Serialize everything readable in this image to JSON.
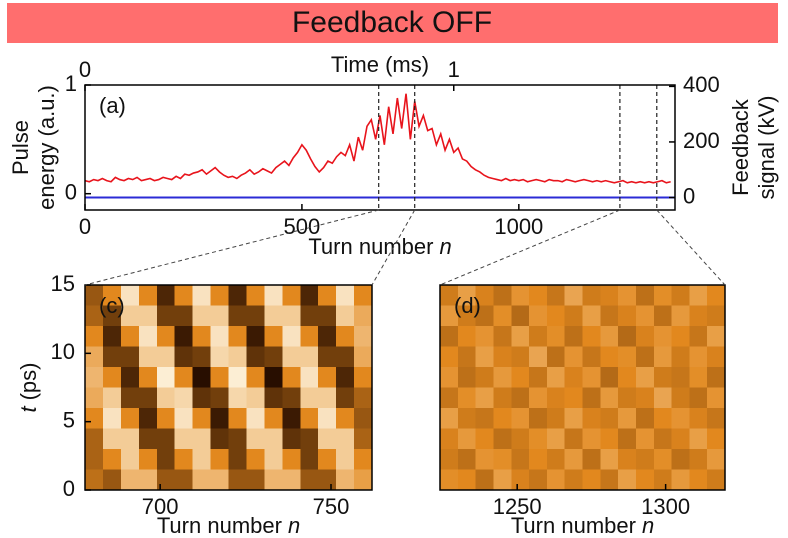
{
  "banner": "Feedback OFF",
  "chart_data": [
    {
      "type": "line",
      "panel_label": "(a)",
      "xlabel": {
        "text": "Turn number",
        "var": "n"
      },
      "x2label": "Time (ms)",
      "ylabel": [
        "Pulse",
        "energy (a.u.)"
      ],
      "y2label": [
        "Feedback",
        "signal (kV)"
      ],
      "xlim": [
        0,
        1360
      ],
      "xticks": [
        0,
        500,
        1000
      ],
      "x2lim": [
        0,
        1.6
      ],
      "x2ticks": [
        0,
        1
      ],
      "ylim": [
        -0.15,
        1
      ],
      "yticks": [
        0,
        1
      ],
      "y2lim": [
        -45,
        405
      ],
      "y2ticks": [
        0,
        200,
        400
      ],
      "vlines": [
        677,
        760,
        1233,
        1318
      ],
      "series": [
        {
          "color": "#e8141c",
          "x": [
            0,
            10,
            20,
            30,
            40,
            50,
            60,
            70,
            80,
            90,
            100,
            110,
            120,
            130,
            140,
            150,
            160,
            170,
            180,
            190,
            200,
            210,
            220,
            230,
            240,
            250,
            260,
            270,
            280,
            290,
            300,
            310,
            320,
            330,
            340,
            350,
            360,
            370,
            380,
            390,
            400,
            410,
            420,
            430,
            440,
            450,
            460,
            470,
            480,
            490,
            500,
            510,
            520,
            530,
            540,
            550,
            560,
            570,
            580,
            590,
            600,
            610,
            620,
            630,
            640,
            650,
            660,
            670,
            680,
            690,
            700,
            710,
            720,
            730,
            740,
            750,
            760,
            770,
            780,
            790,
            800,
            810,
            820,
            830,
            840,
            850,
            860,
            870,
            880,
            890,
            900,
            910,
            920,
            930,
            940,
            950,
            960,
            970,
            980,
            990,
            1000,
            1010,
            1020,
            1030,
            1040,
            1050,
            1060,
            1070,
            1080,
            1090,
            1100,
            1110,
            1120,
            1130,
            1140,
            1150,
            1160,
            1170,
            1180,
            1190,
            1200,
            1210,
            1220,
            1230,
            1240,
            1250,
            1260,
            1270,
            1280,
            1290,
            1300,
            1310,
            1320,
            1330,
            1340,
            1350
          ],
          "values": [
            0.12,
            0.11,
            0.13,
            0.12,
            0.14,
            0.12,
            0.11,
            0.15,
            0.13,
            0.12,
            0.14,
            0.13,
            0.15,
            0.12,
            0.13,
            0.14,
            0.12,
            0.13,
            0.15,
            0.14,
            0.13,
            0.16,
            0.14,
            0.18,
            0.17,
            0.19,
            0.2,
            0.22,
            0.18,
            0.21,
            0.24,
            0.2,
            0.17,
            0.15,
            0.16,
            0.14,
            0.17,
            0.19,
            0.22,
            0.18,
            0.2,
            0.23,
            0.21,
            0.19,
            0.24,
            0.27,
            0.3,
            0.26,
            0.33,
            0.38,
            0.45,
            0.4,
            0.32,
            0.25,
            0.2,
            0.24,
            0.3,
            0.28,
            0.34,
            0.38,
            0.35,
            0.45,
            0.3,
            0.52,
            0.4,
            0.62,
            0.68,
            0.5,
            0.72,
            0.45,
            0.8,
            0.55,
            0.88,
            0.6,
            0.92,
            0.5,
            0.85,
            0.62,
            0.72,
            0.58,
            0.6,
            0.45,
            0.55,
            0.4,
            0.5,
            0.38,
            0.42,
            0.32,
            0.3,
            0.25,
            0.22,
            0.2,
            0.17,
            0.15,
            0.14,
            0.13,
            0.12,
            0.14,
            0.12,
            0.13,
            0.12,
            0.13,
            0.11,
            0.12,
            0.13,
            0.12,
            0.11,
            0.13,
            0.12,
            0.12,
            0.11,
            0.13,
            0.12,
            0.11,
            0.12,
            0.13,
            0.12,
            0.11,
            0.12,
            0.11,
            0.12,
            0.11,
            0.1,
            0.11,
            0.12,
            0.1,
            0.11,
            0.1,
            0.11,
            0.1,
            0.11,
            0.1,
            0.11,
            0.12,
            0.1,
            0.11
          ]
        },
        {
          "color": "#2b2bd6",
          "axis": "y2",
          "x": [
            0,
            1360
          ],
          "values": [
            0,
            0
          ]
        }
      ]
    },
    {
      "type": "heatmap",
      "panel_label": "(c)",
      "xlabel": {
        "text": "Turn number",
        "var": "n"
      },
      "ylabel": {
        "var": "t",
        "text": "(ps)"
      },
      "xlim": [
        678,
        762
      ],
      "xticks": [
        700,
        750
      ],
      "ylim": [
        0,
        15
      ],
      "yticks": [
        0,
        5,
        10,
        15
      ],
      "zlim": [
        -1,
        1
      ],
      "z": [
        [
          0.4,
          0,
          -0.8,
          0,
          0.8,
          0,
          -0.8,
          0,
          0.8,
          0,
          -0.8,
          0,
          0.8,
          0,
          -0.8,
          0
        ],
        [
          0.3,
          0.6,
          -0.6,
          -0.6,
          0.6,
          0.6,
          -0.6,
          -0.6,
          0.6,
          0.6,
          -0.6,
          -0.6,
          0.6,
          0.6,
          -0.6,
          -0.3
        ],
        [
          0,
          0.8,
          0,
          -0.8,
          0,
          0.9,
          0,
          -0.8,
          0,
          0.9,
          0,
          -0.8,
          0,
          0.8,
          0,
          -0.4
        ],
        [
          -0.3,
          0.6,
          0.6,
          -0.6,
          -0.6,
          0.7,
          0.6,
          -0.7,
          -0.6,
          0.7,
          0.6,
          -0.6,
          -0.6,
          0.6,
          0.6,
          -0.3
        ],
        [
          -0.4,
          0,
          0.8,
          0,
          -0.9,
          0,
          1,
          0,
          -0.9,
          0,
          1,
          0,
          -0.8,
          0,
          0.8,
          0
        ],
        [
          -0.3,
          -0.6,
          0.6,
          0.6,
          -0.6,
          -0.7,
          0.7,
          0.6,
          -0.7,
          -0.6,
          0.7,
          0.6,
          -0.6,
          -0.6,
          0.6,
          0.3
        ],
        [
          0,
          -0.8,
          0,
          0.8,
          0,
          -0.8,
          0,
          0.9,
          0,
          -0.8,
          0,
          0.9,
          0,
          -0.8,
          0,
          0.4
        ],
        [
          0.3,
          -0.6,
          -0.6,
          0.6,
          0.6,
          -0.6,
          -0.6,
          0.7,
          0.6,
          -0.6,
          -0.6,
          0.7,
          0.6,
          -0.6,
          -0.6,
          0.3
        ],
        [
          0.3,
          0,
          -0.6,
          0,
          0.6,
          0,
          -0.6,
          0,
          0.6,
          0,
          -0.6,
          0,
          0.6,
          0,
          -0.6,
          0
        ],
        [
          0.2,
          0.4,
          -0.4,
          -0.4,
          0.4,
          0.4,
          -0.4,
          -0.4,
          0.4,
          0.4,
          -0.4,
          -0.4,
          0.4,
          0.4,
          -0.4,
          -0.2
        ]
      ]
    },
    {
      "type": "heatmap",
      "panel_label": "(d)",
      "xlabel": {
        "text": "Turn number",
        "var": "n"
      },
      "xlim": [
        1224,
        1320
      ],
      "xticks": [
        1250,
        1300
      ],
      "ylim": [
        0,
        15
      ],
      "zlim": [
        -1,
        1
      ],
      "z": [
        [
          0.1,
          -0.2,
          0.05,
          0.2,
          -0.1,
          0,
          0.15,
          -0.25,
          0.1,
          0.05,
          -0.1,
          0.2,
          -0.05,
          0.1,
          -0.2,
          0
        ],
        [
          -0.15,
          0.1,
          0.2,
          -0.05,
          0.25,
          -0.1,
          0,
          0.1,
          -0.2,
          0.15,
          0.05,
          -0.1,
          0.2,
          -0.15,
          0.05,
          0.1
        ],
        [
          0.2,
          0,
          -0.1,
          0.15,
          -0.2,
          0.1,
          -0.05,
          0.2,
          0,
          -0.15,
          0.25,
          0.05,
          -0.1,
          0,
          0.15,
          -0.2
        ],
        [
          0,
          0.15,
          -0.2,
          0.05,
          0.1,
          -0.25,
          0.2,
          -0.1,
          0.15,
          0,
          -0.05,
          0.2,
          -0.15,
          0.1,
          -0.1,
          0.05
        ],
        [
          -0.1,
          0.2,
          0.1,
          -0.15,
          0,
          0.15,
          -0.2,
          0.05,
          -0.1,
          0.25,
          0,
          -0.2,
          0.1,
          0.15,
          -0.05,
          0.2
        ],
        [
          0.15,
          -0.05,
          -0.2,
          0.1,
          0.2,
          -0.1,
          0.05,
          0,
          0.2,
          -0.15,
          0.1,
          0.05,
          -0.25,
          0.1,
          0.2,
          -0.1
        ],
        [
          -0.2,
          0.1,
          0.15,
          0,
          -0.1,
          0.2,
          0.1,
          -0.2,
          0.05,
          0.1,
          -0.15,
          0.2,
          0,
          -0.1,
          0.05,
          0.15
        ],
        [
          0.05,
          -0.15,
          0,
          0.2,
          0.1,
          -0.05,
          -0.2,
          0.15,
          -0.1,
          0,
          0.2,
          -0.1,
          0.15,
          0.05,
          -0.2,
          0
        ],
        [
          0.1,
          0.2,
          -0.1,
          -0.05,
          0.15,
          0,
          0.1,
          -0.15,
          0.2,
          -0.2,
          0.05,
          0.1,
          -0.05,
          0.2,
          0.1,
          -0.15
        ],
        [
          -0.05,
          0,
          0.2,
          -0.2,
          0.05,
          0.15,
          -0.1,
          0.1,
          0,
          0.15,
          -0.2,
          0,
          0.1,
          -0.15,
          0,
          0.1
        ]
      ]
    }
  ]
}
